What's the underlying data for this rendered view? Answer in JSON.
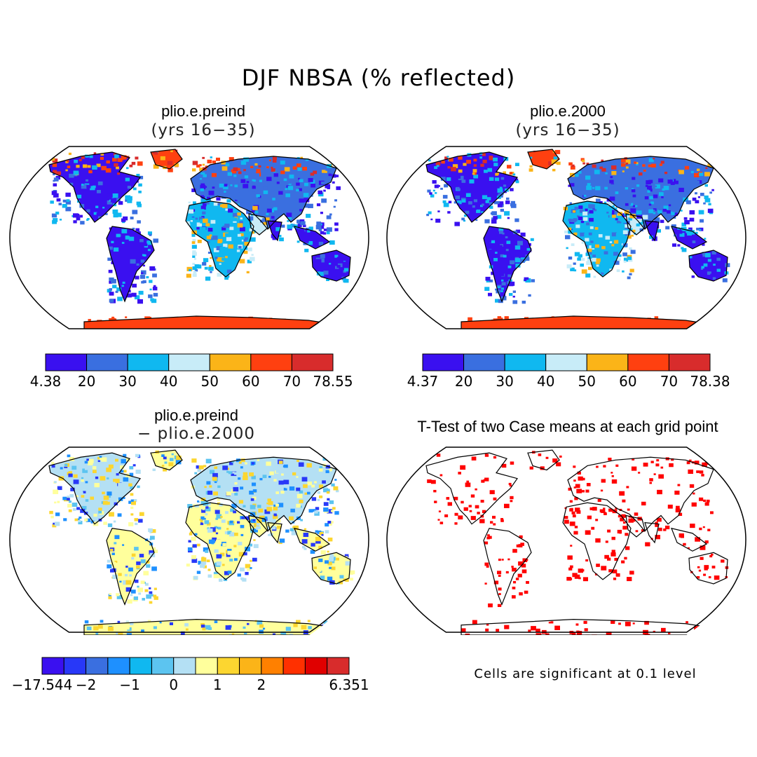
{
  "figure_title": "DJF NBSA (% reflected)",
  "chart_data": [
    {
      "type": "heatmap",
      "panel": "top-left",
      "title": "plio.e.preind",
      "subtitle": "(yrs 16−35)",
      "colorbar": {
        "labels": [
          "4.38",
          "20",
          "30",
          "40",
          "50",
          "60",
          "70",
          "78.55"
        ],
        "bin_colors": [
          "#3a10f0",
          "#3a6fe0",
          "#10b8f0",
          "#c8ecf8",
          "#fbb418",
          "#ff4010",
          "#d82c2c"
        ]
      },
      "description_values": {
        "min": 4.38,
        "max": 78.55
      }
    },
    {
      "type": "heatmap",
      "panel": "top-right",
      "title": "plio.e.2000",
      "subtitle": "(yrs 16−35)",
      "colorbar": {
        "labels": [
          "4.37",
          "20",
          "30",
          "40",
          "50",
          "60",
          "70",
          "78.38"
        ],
        "bin_colors": [
          "#3a10f0",
          "#3a6fe0",
          "#10b8f0",
          "#c8ecf8",
          "#fbb418",
          "#ff4010",
          "#d82c2c"
        ]
      },
      "description_values": {
        "min": 4.37,
        "max": 78.38
      }
    },
    {
      "type": "heatmap",
      "panel": "bottom-left",
      "title": "plio.e.preind",
      "subtitle": "− plio.e.2000",
      "colorbar": {
        "labels": [
          "−17.544",
          "−2",
          "−1",
          "0",
          "1",
          "2",
          "6.351"
        ],
        "label_bin_index": [
          0,
          2,
          4,
          6,
          8,
          10,
          12
        ],
        "bin_colors": [
          "#3a10f0",
          "#2838f8",
          "#3a6fe0",
          "#1e90ff",
          "#10b8f0",
          "#5cc4f0",
          "#b4e0f4",
          "#ffff9c",
          "#fcd630",
          "#fbb418",
          "#ff8000",
          "#ff3000",
          "#e00000",
          "#d82c2c"
        ]
      },
      "description_values": {
        "min": -17.544,
        "max": 6.351
      }
    },
    {
      "type": "heatmap",
      "panel": "bottom-right",
      "title": "T-Test of two Case means at each grid point",
      "note": "Cells are significant at 0.1 level",
      "significant_color": "#ff0000"
    }
  ]
}
